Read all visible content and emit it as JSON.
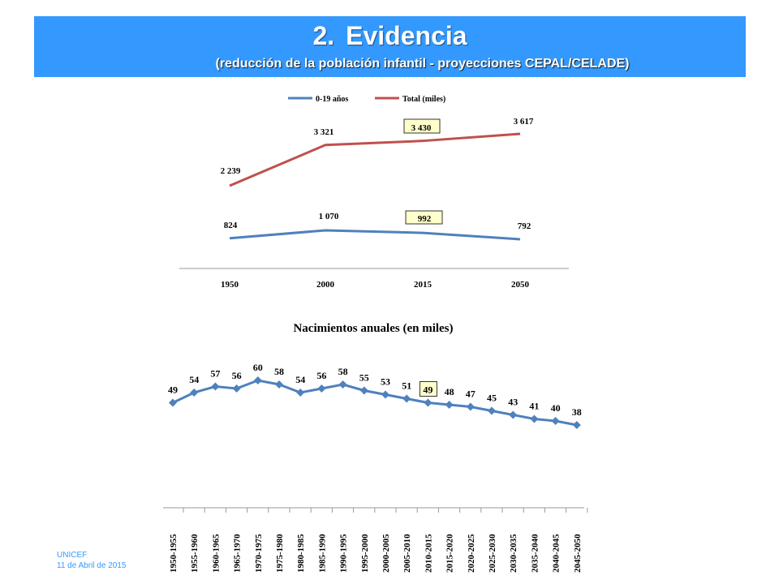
{
  "header": {
    "number": "2.",
    "title": "Evidencia",
    "subtitle": "(reducción de la población infantil - proyecciones CEPAL/CELADE)"
  },
  "footer": {
    "org": "UNICEF",
    "date": "11 de Abril de 2015"
  },
  "colors": {
    "banner": "#3399ff",
    "series_blue": "#4f81bd",
    "series_red": "#c0504d",
    "highlight_fill": "#ffffcc"
  },
  "chart_data": [
    {
      "type": "line",
      "title": "",
      "categories": [
        "1950",
        "2000",
        "2015",
        "2050"
      ],
      "series": [
        {
          "name": "0-19 años",
          "values": [
            824,
            1070,
            992,
            792
          ],
          "labels": [
            "824",
            "1 070",
            "992",
            "792"
          ]
        },
        {
          "name": "Total (miles)",
          "values": [
            2239,
            3321,
            3430,
            3617
          ],
          "labels": [
            "2 239",
            "3 321",
            "3 430",
            "3 617"
          ]
        }
      ],
      "highlighted_category": "2015",
      "legend": "top",
      "grid": false
    },
    {
      "type": "line",
      "title": "Nacimientos anuales (en miles)",
      "categories": [
        "1950-1955",
        "1955-1960",
        "1960-1965",
        "1965-1970",
        "1970-1975",
        "1975-1980",
        "1980-1985",
        "1985-1990",
        "1990-1995",
        "1995-2000",
        "2000-2005",
        "2005-2010",
        "2010-2015",
        "2015-2020",
        "2020-2025",
        "2025-2030",
        "2030-2035",
        "2035-2040",
        "2040-2045",
        "2045-2050"
      ],
      "series": [
        {
          "values": [
            49,
            54,
            57,
            56,
            60,
            58,
            54,
            56,
            58,
            55,
            53,
            51,
            49,
            48,
            47,
            45,
            43,
            41,
            40,
            38
          ]
        }
      ],
      "highlighted_category": "2010-2015",
      "markers": "diamond",
      "grid": false
    }
  ]
}
